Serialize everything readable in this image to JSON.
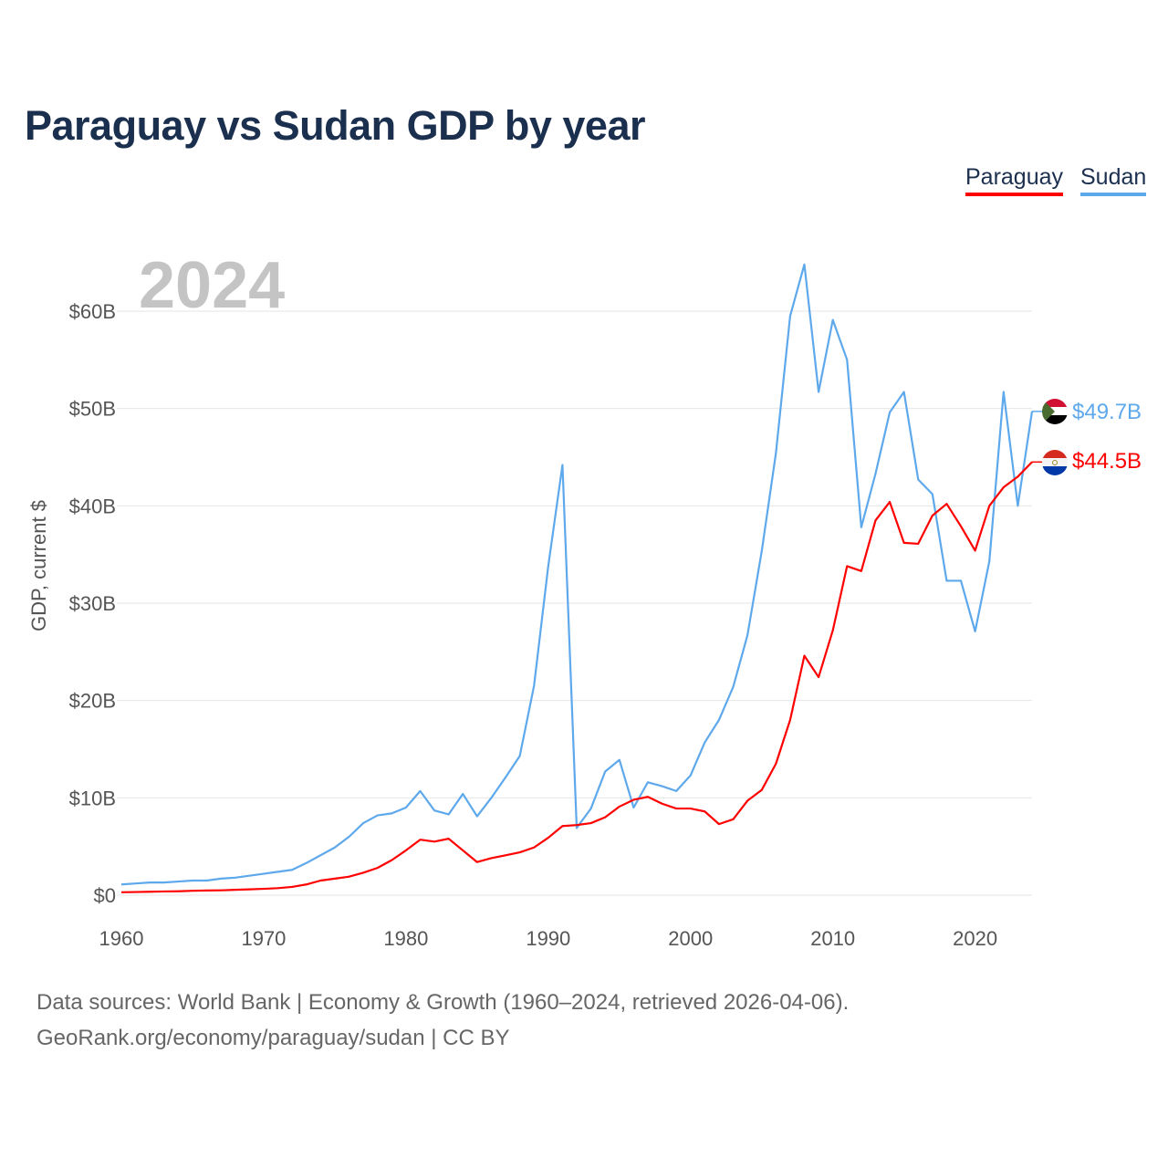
{
  "chart_data": {
    "type": "line",
    "title": "Paraguay vs Sudan GDP by year",
    "xlabel": "",
    "ylabel": "GDP, current $",
    "year_overlay": "2024",
    "xlim": [
      1960,
      2024
    ],
    "ylim": [
      0,
      65
    ],
    "x_ticks": [
      "1960",
      "1970",
      "1980",
      "1990",
      "2000",
      "2010",
      "2020"
    ],
    "y_ticks": [
      {
        "v": 0,
        "label": "$0"
      },
      {
        "v": 10,
        "label": "$10B"
      },
      {
        "v": 20,
        "label": "$20B"
      },
      {
        "v": 30,
        "label": "$30B"
      },
      {
        "v": 40,
        "label": "$40B"
      },
      {
        "v": 50,
        "label": "$50B"
      },
      {
        "v": 60,
        "label": "$60B"
      }
    ],
    "grid": true,
    "legend_placement": "top-right",
    "start_year": 1960,
    "series": [
      {
        "name": "Paraguay",
        "color": "#ff0000",
        "end_label": "$44.5B",
        "flag": "paraguay-flag",
        "values": [
          0.3,
          0.32,
          0.35,
          0.38,
          0.4,
          0.45,
          0.48,
          0.5,
          0.55,
          0.6,
          0.65,
          0.72,
          0.85,
          1.1,
          1.5,
          1.7,
          1.9,
          2.3,
          2.8,
          3.6,
          4.6,
          5.7,
          5.5,
          5.8,
          4.6,
          3.4,
          3.8,
          4.1,
          4.4,
          4.9,
          5.9,
          7.1,
          7.2,
          7.4,
          8.0,
          9.1,
          9.8,
          10.1,
          9.4,
          8.9,
          8.9,
          8.6,
          7.3,
          7.8,
          9.7,
          10.8,
          13.5,
          18.0,
          24.6,
          22.4,
          27.2,
          33.8,
          33.3,
          38.5,
          40.4,
          36.2,
          36.1,
          39.0,
          40.2,
          37.9,
          35.4,
          40.0,
          41.9,
          43.0,
          44.5
        ]
      },
      {
        "name": "Sudan",
        "color": "#5ea8ec",
        "end_label": "$49.7B",
        "flag": "sudan-flag",
        "values": [
          1.1,
          1.2,
          1.3,
          1.3,
          1.4,
          1.5,
          1.5,
          1.7,
          1.8,
          2.0,
          2.2,
          2.4,
          2.6,
          3.3,
          4.1,
          4.9,
          6.0,
          7.4,
          8.2,
          8.4,
          9.0,
          10.7,
          8.7,
          8.3,
          10.4,
          8.1,
          10.0,
          12.1,
          14.3,
          21.5,
          33.8,
          44.2,
          6.9,
          8.9,
          12.7,
          13.9,
          9.0,
          11.6,
          11.2,
          10.7,
          12.3,
          15.7,
          18.0,
          21.4,
          26.7,
          35.3,
          45.4,
          59.5,
          64.8,
          51.7,
          59.1,
          55.0,
          37.8,
          43.3,
          49.6,
          51.7,
          42.7,
          41.2,
          32.3,
          32.3,
          27.1,
          34.3,
          51.7,
          40.0,
          49.7
        ]
      }
    ]
  },
  "footer": {
    "line1": "Data sources: World Bank | Economy & Growth (1960–2024, retrieved 2026-04-06).",
    "line2": "GeoRank.org/economy/paraguay/sudan | CC BY"
  }
}
